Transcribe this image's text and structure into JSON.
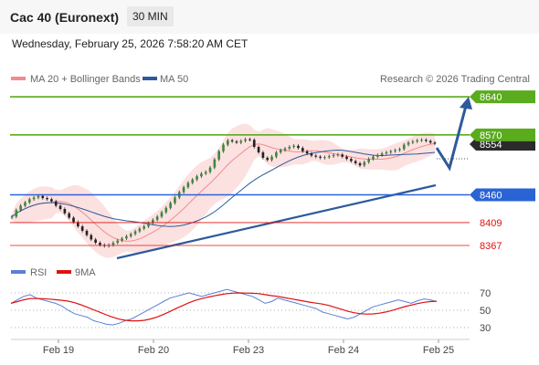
{
  "header": {
    "title": "Cac 40 (Euronext)",
    "timeframe": "30 MIN"
  },
  "datetime": "Wednesday, February 25, 2026 7:58:20 AM CET",
  "legend": {
    "ma20": "MA 20 + Bollinger Bands",
    "ma50": "MA 50",
    "ma20_color": "#f28b8b",
    "ma50_color": "#2d5a9b"
  },
  "watermark": "Research © 2026 Trading Central",
  "rsi_legend": {
    "rsi": "RSI",
    "ma": "9MA",
    "rsi_color": "#5b7fd4",
    "ma_color": "#e01010"
  },
  "levels": [
    {
      "value": "8640",
      "kind": "resistance",
      "color": "#5aab1e"
    },
    {
      "value": "8570",
      "kind": "resistance",
      "color": "#5aab1e"
    },
    {
      "value": "8554",
      "kind": "last",
      "color": "#2b2b2b"
    },
    {
      "value": "8460",
      "kind": "pivot",
      "color": "#2a63d4"
    },
    {
      "value": "8409",
      "kind": "support",
      "color": "#e01010"
    },
    {
      "value": "8367",
      "kind": "support",
      "color": "#e01010"
    }
  ],
  "rsi_ticks": [
    "70",
    "50",
    "30"
  ],
  "x_labels": [
    "Feb 19",
    "Feb 20",
    "Feb 23",
    "Feb 24",
    "Feb 25"
  ],
  "chart_data": {
    "type": "candlestick",
    "price_range": [
      8330,
      8680
    ],
    "close": [
      8420,
      8432,
      8440,
      8446,
      8452,
      8455,
      8458,
      8454,
      8452,
      8448,
      8440,
      8434,
      8426,
      8418,
      8410,
      8402,
      8394,
      8386,
      8378,
      8372,
      8368,
      8366,
      8368,
      8372,
      8376,
      8380,
      8384,
      8388,
      8393,
      8398,
      8402,
      8408,
      8414,
      8420,
      8428,
      8436,
      8445,
      8455,
      8465,
      8474,
      8482,
      8488,
      8494,
      8499,
      8502,
      8510,
      8525,
      8540,
      8552,
      8560,
      8558,
      8556,
      8559,
      8562,
      8561,
      8548,
      8538,
      8528,
      8524,
      8530,
      8538,
      8542,
      8545,
      8548,
      8550,
      8546,
      8540,
      8536,
      8532,
      8530,
      8528,
      8529,
      8531,
      8533,
      8534,
      8530,
      8526,
      8522,
      8518,
      8514,
      8520,
      8526,
      8530,
      8533,
      8536,
      8538,
      8540,
      8542,
      8544,
      8552,
      8556,
      8558,
      8560,
      8561,
      8559,
      8556,
      8554
    ],
    "rsi": [
      58,
      62,
      66,
      68,
      64,
      62,
      60,
      58,
      55,
      50,
      46,
      44,
      42,
      38,
      36,
      34,
      33,
      35,
      38,
      40,
      44,
      48,
      52,
      56,
      60,
      64,
      66,
      68,
      70,
      68,
      66,
      68,
      70,
      72,
      74,
      72,
      70,
      68,
      66,
      62,
      58,
      60,
      64,
      62,
      60,
      58,
      56,
      54,
      52,
      48,
      46,
      44,
      42,
      40,
      42,
      46,
      50,
      54,
      56,
      58,
      60,
      62,
      60,
      58,
      61,
      63,
      62,
      60
    ],
    "rsi_ticks": [
      70,
      50,
      30
    ]
  }
}
